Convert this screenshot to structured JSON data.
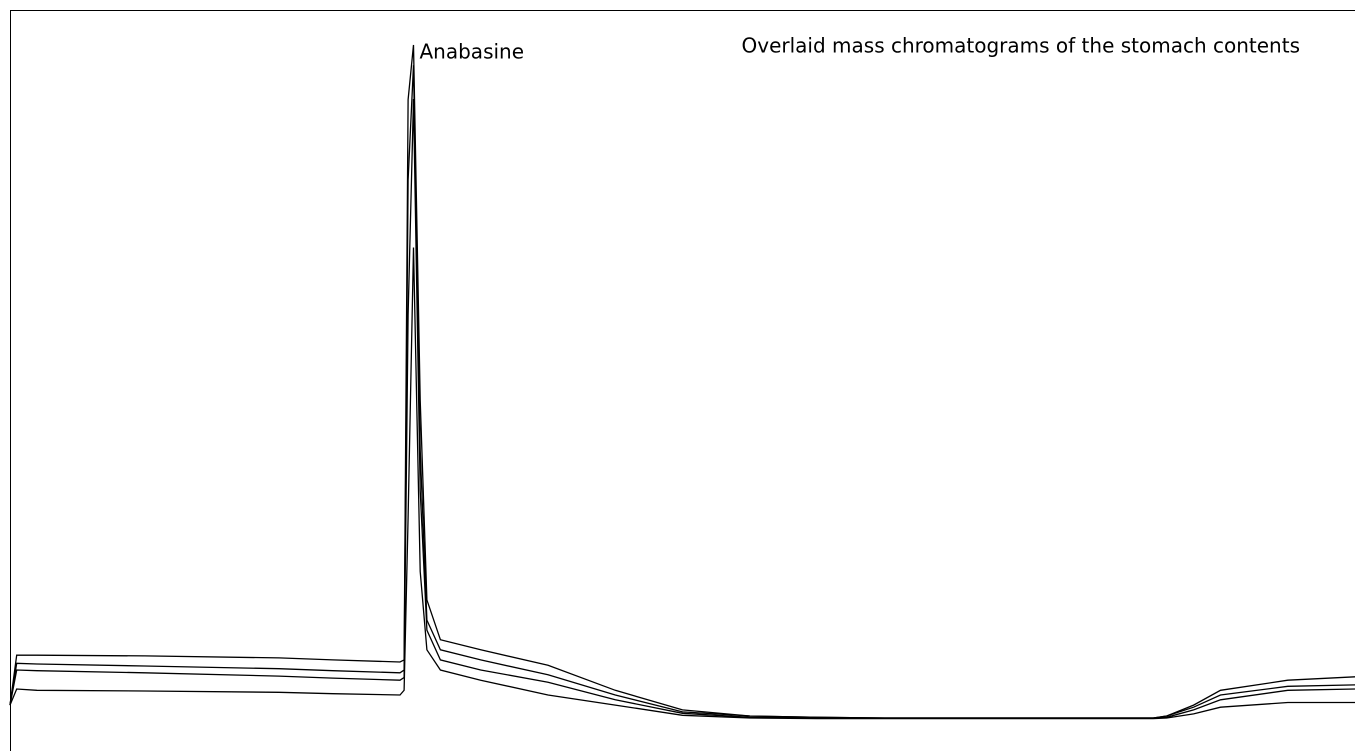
{
  "chart_data": {
    "type": "line",
    "title": "Overlaid mass chromatograms of the stomach contents",
    "annotations": [
      {
        "text": "Anabasine",
        "x": 30,
        "y": 100
      }
    ],
    "x": [
      0,
      0.5,
      2,
      10,
      20,
      24,
      29,
      29.3,
      29.6,
      30,
      30.5,
      31,
      32,
      35,
      40,
      45,
      50,
      55,
      60,
      65,
      70,
      75,
      80,
      84,
      85,
      86,
      88,
      90,
      95,
      100
    ],
    "xlim": [
      0,
      100
    ],
    "ylim": [
      0,
      100
    ],
    "series": [
      {
        "color": "#000000",
        "values": [
          2.2,
          9.6,
          9.6,
          9.5,
          9.2,
          8.9,
          8.6,
          8.9,
          91.9,
          100,
          47.4,
          17.8,
          11.9,
          10.4,
          8.1,
          4.4,
          1.5,
          0.6,
          0.4,
          0.3,
          0.3,
          0.3,
          0.3,
          0.3,
          0.3,
          0.6,
          2.2,
          4.4,
          5.9,
          6.4
        ]
      },
      {
        "color": "#000000",
        "values": [
          2.2,
          8.4,
          8.3,
          8.0,
          7.6,
          7.3,
          7.0,
          7.4,
          80.0,
          97.0,
          40.0,
          14.8,
          10.4,
          8.9,
          6.7,
          3.7,
          1.2,
          0.6,
          0.4,
          0.3,
          0.3,
          0.3,
          0.3,
          0.3,
          0.3,
          0.6,
          1.9,
          3.7,
          5.0,
          5.2
        ]
      },
      {
        "color": "#000000",
        "values": [
          2.2,
          7.4,
          7.3,
          7.0,
          6.5,
          6.2,
          5.9,
          6.3,
          60.0,
          92.0,
          34.0,
          13.3,
          8.9,
          7.4,
          5.6,
          3.0,
          1.0,
          0.4,
          0.3,
          0.3,
          0.3,
          0.3,
          0.3,
          0.3,
          0.3,
          0.4,
          1.5,
          3.0,
          4.4,
          4.6
        ]
      },
      {
        "color": "#000000",
        "values": [
          2.2,
          4.6,
          4.4,
          4.3,
          4.1,
          3.9,
          3.7,
          4.4,
          30.0,
          70.0,
          22.0,
          10.4,
          7.4,
          5.9,
          3.7,
          2.2,
          0.7,
          0.3,
          0.2,
          0.2,
          0.2,
          0.2,
          0.2,
          0.2,
          0.2,
          0.3,
          0.9,
          1.9,
          2.6,
          2.6
        ]
      }
    ]
  }
}
